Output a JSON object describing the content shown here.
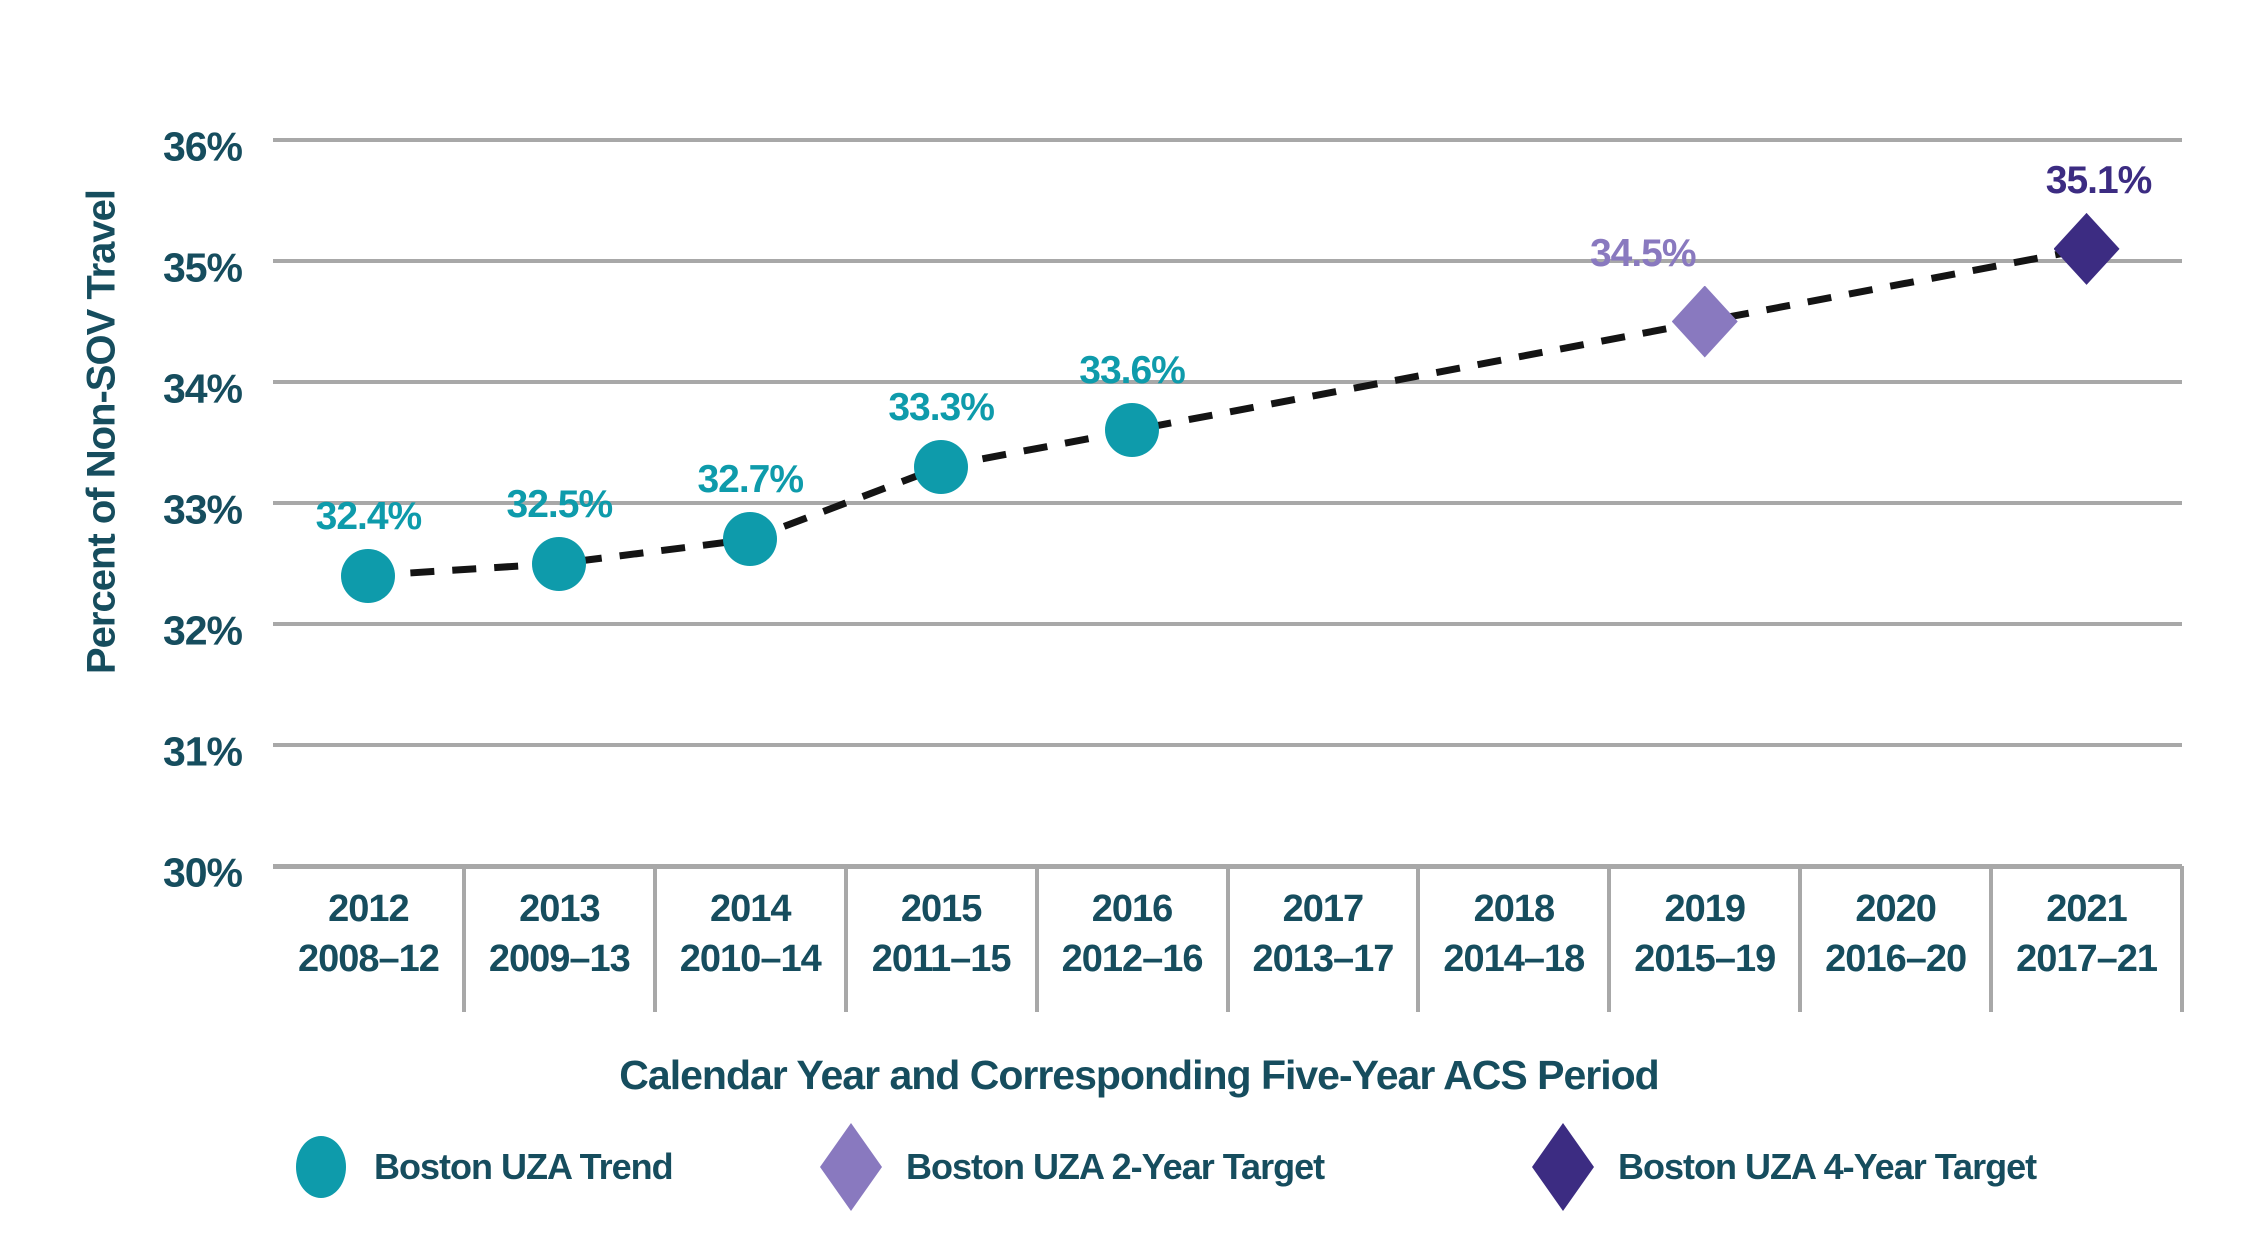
{
  "colors": {
    "teal": "#0E9BAB",
    "light_purple": "#8979BF",
    "dark_purple": "#3C2C82",
    "axis_text": "#164D5E",
    "gridline": "#A8A8A8",
    "trend_line": "#141414",
    "background": "#FFFFFF"
  },
  "chart_data": {
    "type": "scatter",
    "title": "",
    "xlabel": "Calendar Year and Corresponding Five-Year ACS Period",
    "ylabel": "Percent of Non-SOV Travel",
    "ylim": [
      30,
      36
    ],
    "grid": "horizontal-only",
    "legend_position": "bottom",
    "y_ticks": [
      {
        "value": 36,
        "label": "36%"
      },
      {
        "value": 35,
        "label": "35%"
      },
      {
        "value": 34,
        "label": "34%"
      },
      {
        "value": 33,
        "label": "33%"
      },
      {
        "value": 32,
        "label": "32%"
      },
      {
        "value": 31,
        "label": "31%"
      },
      {
        "value": 30,
        "label": "30%"
      }
    ],
    "x_categories": [
      {
        "year": "2012",
        "period": "2008–12"
      },
      {
        "year": "2013",
        "period": "2009–13"
      },
      {
        "year": "2014",
        "period": "2010–14"
      },
      {
        "year": "2015",
        "period": "2011–15"
      },
      {
        "year": "2016",
        "period": "2012–16"
      },
      {
        "year": "2017",
        "period": "2013–17"
      },
      {
        "year": "2018",
        "period": "2014–18"
      },
      {
        "year": "2019",
        "period": "2015–19"
      },
      {
        "year": "2020",
        "period": "2016–20"
      },
      {
        "year": "2021",
        "period": "2017–21"
      }
    ],
    "series": [
      {
        "name": "Boston UZA Trend",
        "marker": "circle",
        "color": "#0E9BAB",
        "points": [
          {
            "year": "2012",
            "value": 32.4,
            "label": "32.4%",
            "label_dx": 0
          },
          {
            "year": "2013",
            "value": 32.5,
            "label": "32.5%",
            "label_dx": 0
          },
          {
            "year": "2014",
            "value": 32.7,
            "label": "32.7%",
            "label_dx": 0
          },
          {
            "year": "2015",
            "value": 33.3,
            "label": "33.3%",
            "label_dx": 0
          },
          {
            "year": "2016",
            "value": 33.6,
            "label": "33.6%",
            "label_dx": 0
          }
        ]
      },
      {
        "name": "Boston UZA 2-Year Target",
        "marker": "diamond",
        "color": "#8979BF",
        "points": [
          {
            "year": "2019",
            "value": 34.5,
            "label": "34.5%",
            "label_dx": -62
          }
        ]
      },
      {
        "name": "Boston UZA 4-Year Target",
        "marker": "diamond",
        "color": "#3C2C82",
        "points": [
          {
            "year": "2021",
            "value": 35.1,
            "label": "35.1%",
            "label_dx": 12
          }
        ]
      }
    ],
    "trend_line": {
      "style": "dashed",
      "color": "#141414",
      "connects": [
        "2012",
        "2013",
        "2014",
        "2015",
        "2016",
        "2019",
        "2021"
      ]
    },
    "legend": [
      {
        "label": "Boston UZA Trend",
        "marker": "circle",
        "color": "#0E9BAB"
      },
      {
        "label": "Boston UZA 2-Year Target",
        "marker": "diamond",
        "color": "#8979BF"
      },
      {
        "label": "Boston UZA 4-Year Target",
        "marker": "diamond",
        "color": "#3C2C82"
      }
    ]
  }
}
